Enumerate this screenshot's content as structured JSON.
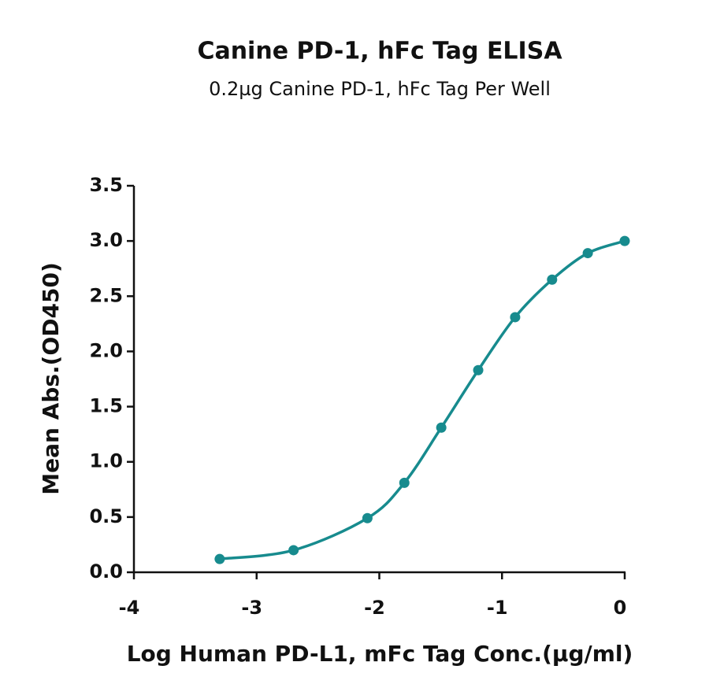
{
  "chart_data": {
    "type": "line",
    "title": "Canine PD-1, hFc Tag ELISA",
    "subtitle": "0.2µg Canine PD-1, hFc Tag Per Well",
    "x_label": "Log Human PD-L1, mFc Tag Conc.(µg/ml)",
    "y_label": "Mean Abs.(OD450)",
    "x": [
      -3.301,
      -2.699,
      -2.097,
      -1.796,
      -1.495,
      -1.194,
      -0.893,
      -0.592,
      -0.301,
      0
    ],
    "values": [
      0.12,
      0.2,
      0.49,
      0.81,
      1.31,
      1.83,
      2.31,
      2.65,
      2.89,
      3.0
    ],
    "color": "#178b8e",
    "xlim": [
      -4,
      0
    ],
    "xticks": [
      -4,
      -3,
      -2,
      -1,
      0
    ],
    "ylim": [
      0,
      3.5
    ],
    "yticks": [
      {
        "value": 0,
        "label": "0.0"
      },
      0.5,
      {
        "value": 1,
        "label": "1.0"
      },
      1.5,
      {
        "value": 2,
        "label": "2.0"
      },
      2.5,
      {
        "value": 3,
        "label": "3.0"
      },
      3.5
    ]
  }
}
